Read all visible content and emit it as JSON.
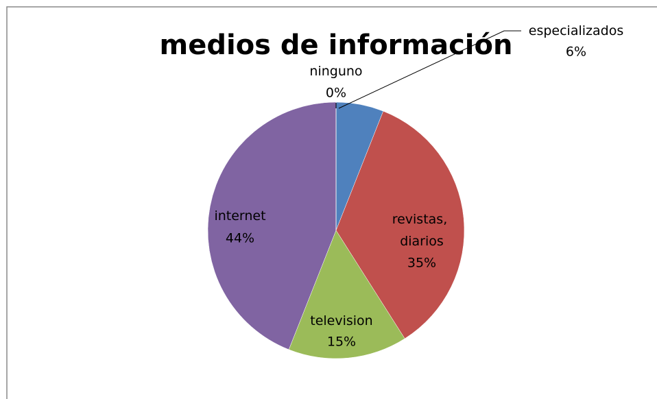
{
  "chart_data": {
    "type": "pie",
    "title": "medios de información",
    "categories": [
      "especializados",
      "revistas, diarios",
      "television",
      "internet",
      "ninguno"
    ],
    "values": [
      6,
      35,
      15,
      44,
      0
    ],
    "value_labels": [
      "6%",
      "35%",
      "15%",
      "44%",
      "0%"
    ],
    "colors": [
      "#4f81bd",
      "#c0504d",
      "#9bbb59",
      "#8064a2",
      "#f79646"
    ]
  }
}
